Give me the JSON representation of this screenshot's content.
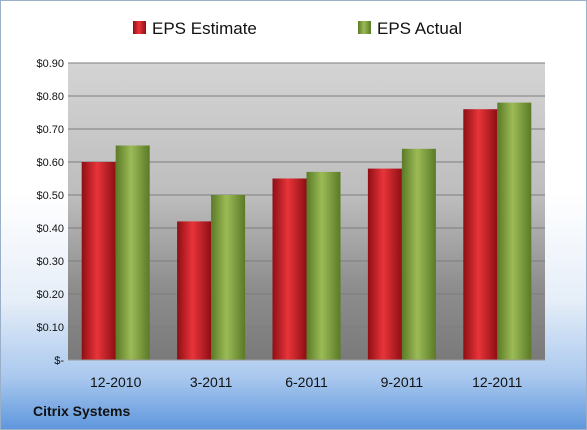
{
  "chart_data": {
    "type": "bar",
    "title": "",
    "xlabel": "",
    "ylabel": "",
    "categories": [
      "12-2010",
      "3-2011",
      "6-2011",
      "9-2011",
      "12-2011"
    ],
    "series": [
      {
        "name": "EPS Estimate",
        "values": [
          0.6,
          0.42,
          0.55,
          0.58,
          0.76
        ],
        "color": "#c8161d"
      },
      {
        "name": "EPS Actual",
        "values": [
          0.65,
          0.5,
          0.57,
          0.64,
          0.78
        ],
        "color": "#7a9a3a"
      }
    ],
    "ylim": [
      0,
      0.9
    ],
    "yticks": [
      0,
      0.1,
      0.2,
      0.3,
      0.4,
      0.5,
      0.6,
      0.7,
      0.8,
      0.9
    ],
    "ytick_labels": [
      "$-",
      "$0.10",
      "$0.20",
      "$0.30",
      "$0.40",
      "$0.50",
      "$0.60",
      "$0.70",
      "$0.80",
      "$0.90"
    ],
    "grid": true,
    "legend_position": "top"
  },
  "footer": {
    "company": "Citrix Systems"
  }
}
